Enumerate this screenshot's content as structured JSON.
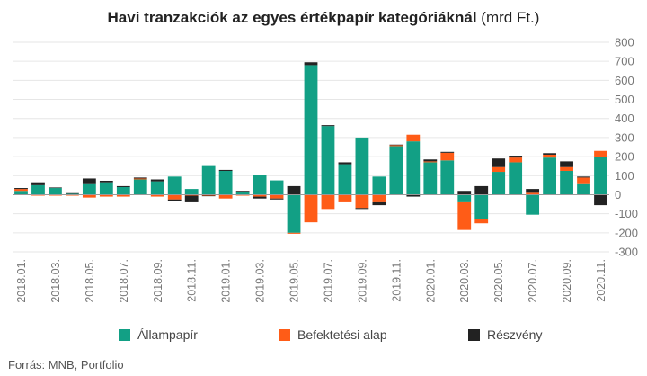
{
  "title_bold": "Havi tranzakciók az egyes értékpapír kategóriáknál",
  "title_rest": " (mrd Ft.)",
  "source": "Forrás: MNB, Portfolio",
  "colors": {
    "allampapir": "#12a085",
    "befektetesi": "#ff5c17",
    "reszveny": "#222222",
    "grid": "#e6e6e6",
    "zero": "#999999",
    "tick": "#777777"
  },
  "chart_data": {
    "type": "bar",
    "stacked": true,
    "ylim": [
      -300,
      800
    ],
    "yticks": [
      -300,
      -200,
      -100,
      0,
      100,
      200,
      300,
      400,
      500,
      600,
      700,
      800
    ],
    "y_axis_position": "right",
    "grid": true,
    "legend_position": "bottom",
    "categories": [
      "2018.01.",
      "2018.02.",
      "2018.03.",
      "2018.04.",
      "2018.05.",
      "2018.06.",
      "2018.07.",
      "2018.08.",
      "2018.09.",
      "2018.10.",
      "2018.11.",
      "2018.12.",
      "2019.01.",
      "2019.02.",
      "2019.03.",
      "2019.04.",
      "2019.05.",
      "2019.06.",
      "2019.07.",
      "2019.08.",
      "2019.09.",
      "2019.10.",
      "2019.11.",
      "2019.12.",
      "2020.01.",
      "2020.02.",
      "2020.03.",
      "2020.04.",
      "2020.05.",
      "2020.06.",
      "2020.07.",
      "2020.08.",
      "2020.09.",
      "2020.10.",
      "2020.11."
    ],
    "x_tick_labels": [
      "2018.01.",
      "",
      "2018.03.",
      "",
      "2018.05.",
      "",
      "2018.07.",
      "",
      "2018.09.",
      "",
      "2018.11.",
      "",
      "2019.01.",
      "",
      "2019.03.",
      "",
      "2019.05.",
      "",
      "2019.07.",
      "",
      "2019.09.",
      "",
      "2019.11.",
      "",
      "2020.01.",
      "",
      "2020.03.",
      "",
      "2020.05.",
      "",
      "2020.07.",
      "",
      "2020.09.",
      "",
      "2020.11."
    ],
    "series": [
      {
        "name": "Állampapír",
        "color_key": "allampapir",
        "values": [
          20,
          50,
          35,
          5,
          60,
          65,
          40,
          80,
          70,
          95,
          30,
          155,
          125,
          15,
          105,
          75,
          -200,
          680,
          360,
          160,
          300,
          95,
          255,
          280,
          170,
          180,
          -40,
          -130,
          120,
          170,
          -105,
          195,
          125,
          60,
          200
        ]
      },
      {
        "name": "Befektetési alap",
        "color_key": "befektetesi",
        "values": [
          10,
          -5,
          -5,
          -5,
          -15,
          -10,
          -10,
          5,
          -10,
          -25,
          -5,
          -5,
          -20,
          -5,
          -10,
          -20,
          -5,
          -145,
          -75,
          -40,
          -70,
          -40,
          5,
          35,
          5,
          40,
          -145,
          -20,
          25,
          25,
          10,
          15,
          20,
          30,
          30
        ]
      },
      {
        "name": "Részvény",
        "color_key": "reszveny",
        "values": [
          5,
          15,
          3,
          3,
          25,
          8,
          5,
          5,
          10,
          -10,
          -35,
          -3,
          5,
          5,
          -10,
          -5,
          45,
          15,
          5,
          10,
          -5,
          -15,
          3,
          -10,
          10,
          5,
          20,
          45,
          45,
          10,
          20,
          8,
          30,
          5,
          -55
        ]
      }
    ]
  }
}
